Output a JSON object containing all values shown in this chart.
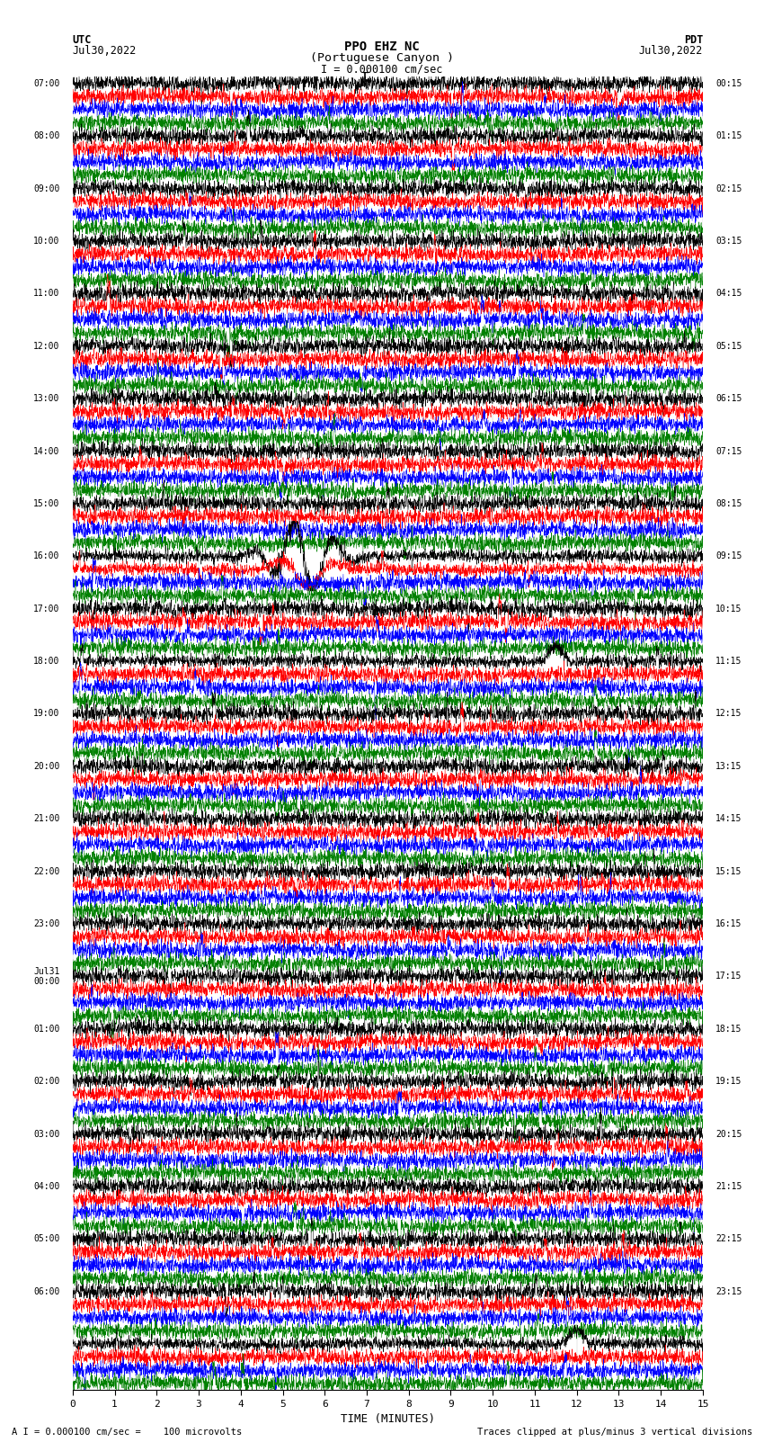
{
  "title_line1": "PPO EHZ NC",
  "title_line2": "(Portuguese Canyon )",
  "scale_text": "I = 0.000100 cm/sec",
  "utc_label": "UTC",
  "utc_date": "Jul30,2022",
  "pdt_label": "PDT",
  "pdt_date": "Jul30,2022",
  "bottom_left": "A I = 0.000100 cm/sec =    100 microvolts",
  "bottom_right": "Traces clipped at plus/minus 3 vertical divisions",
  "xlabel": "TIME (MINUTES)",
  "xlim": [
    0,
    15
  ],
  "xticks": [
    0,
    1,
    2,
    3,
    4,
    5,
    6,
    7,
    8,
    9,
    10,
    11,
    12,
    13,
    14,
    15
  ],
  "colors": [
    "black",
    "red",
    "blue",
    "green"
  ],
  "bg_color": "#ffffff",
  "n_rows": 100,
  "noise_amp": 0.3,
  "left_times": [
    "07:00",
    "",
    "",
    "",
    "08:00",
    "",
    "",
    "",
    "09:00",
    "",
    "",
    "",
    "10:00",
    "",
    "",
    "",
    "11:00",
    "",
    "",
    "",
    "12:00",
    "",
    "",
    "",
    "13:00",
    "",
    "",
    "",
    "14:00",
    "",
    "",
    "",
    "15:00",
    "",
    "",
    "",
    "16:00",
    "",
    "",
    "",
    "17:00",
    "",
    "",
    "",
    "18:00",
    "",
    "",
    "",
    "19:00",
    "",
    "",
    "",
    "20:00",
    "",
    "",
    "",
    "21:00",
    "",
    "",
    "",
    "22:00",
    "",
    "",
    "",
    "23:00",
    "",
    "",
    "",
    "Jul31\n00:00",
    "",
    "",
    "",
    "01:00",
    "",
    "",
    "",
    "02:00",
    "",
    "",
    "",
    "03:00",
    "",
    "",
    "",
    "04:00",
    "",
    "",
    "",
    "05:00",
    "",
    "",
    "",
    "06:00",
    "",
    ""
  ],
  "right_times": [
    "00:15",
    "",
    "",
    "",
    "01:15",
    "",
    "",
    "",
    "02:15",
    "",
    "",
    "",
    "03:15",
    "",
    "",
    "",
    "04:15",
    "",
    "",
    "",
    "05:15",
    "",
    "",
    "",
    "06:15",
    "",
    "",
    "",
    "07:15",
    "",
    "",
    "",
    "08:15",
    "",
    "",
    "",
    "09:15",
    "",
    "",
    "",
    "10:15",
    "",
    "",
    "",
    "11:15",
    "",
    "",
    "",
    "12:15",
    "",
    "",
    "",
    "13:15",
    "",
    "",
    "",
    "14:15",
    "",
    "",
    "",
    "15:15",
    "",
    "",
    "",
    "16:15",
    "",
    "",
    "",
    "17:15",
    "",
    "",
    "",
    "18:15",
    "",
    "",
    "",
    "19:15",
    "",
    "",
    "",
    "20:15",
    "",
    "",
    "",
    "21:15",
    "",
    "",
    "",
    "22:15",
    "",
    "",
    "",
    "23:15",
    "",
    ""
  ],
  "earthquake_row": 36,
  "earthquake_col": 5.5,
  "earthquake_amp": 2.8,
  "eq2_row": 44,
  "eq2_col": 11.5,
  "eq2_amp": 1.2,
  "eq3_row": 96,
  "eq3_col": 12.0,
  "eq3_amp": 1.2,
  "seed": 42
}
